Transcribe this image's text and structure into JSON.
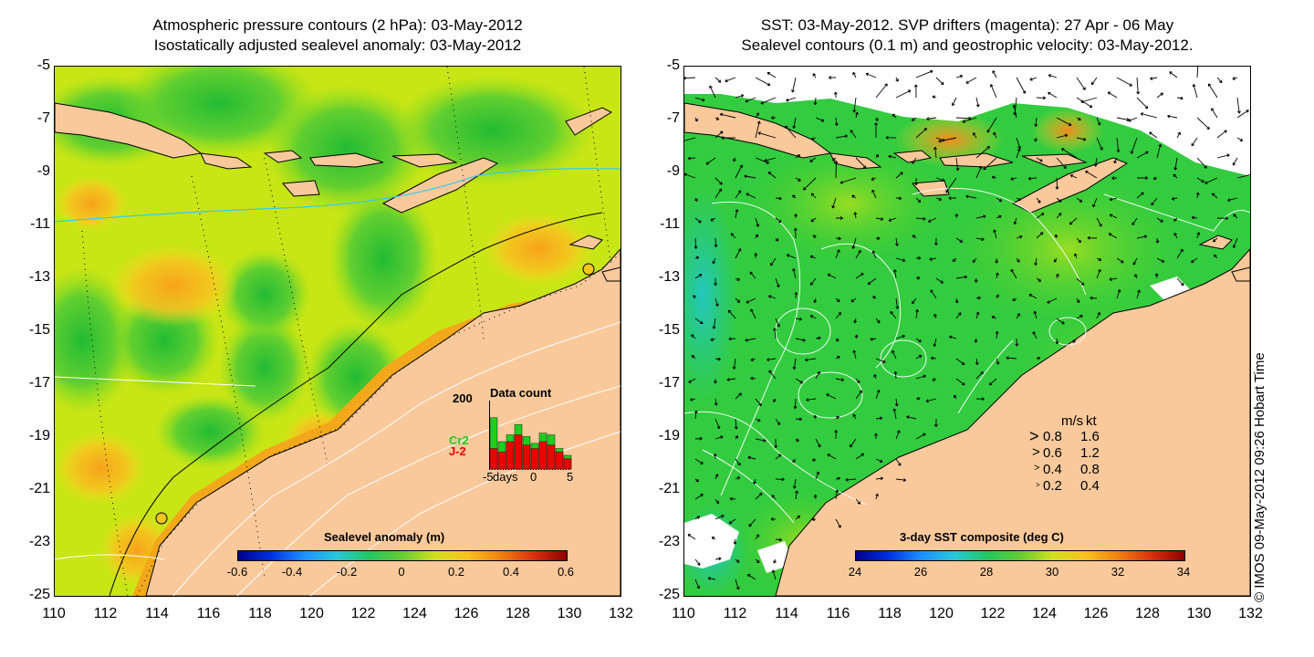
{
  "left_panel": {
    "title_line1": "Atmospheric pressure contours (2 hPa): 03-May-2012",
    "title_line2": "Isostatically adjusted sealevel anomaly: 03-May-2012",
    "colorbar": {
      "title": "Sealevel anomaly (m)",
      "ticks": [
        "-0.6",
        "-0.4",
        "-0.2",
        "0",
        "0.2",
        "0.4",
        "0.6"
      ]
    },
    "inset": {
      "title": "Data count",
      "ymax_label": "200",
      "series": [
        {
          "name": "Cr2",
          "color": "#22cc22"
        },
        {
          "name": "J-2",
          "color": "#ee0000"
        }
      ],
      "x_label": "days",
      "x_ticks": [
        "-5",
        "0",
        "5"
      ],
      "bins": {
        "x": [
          -5,
          -4,
          -3,
          -2,
          -1,
          0,
          1,
          2,
          3,
          4
        ],
        "j2": [
          60,
          50,
          80,
          100,
          70,
          60,
          80,
          70,
          50,
          30
        ],
        "cr2": [
          150,
          80,
          100,
          130,
          95,
          75,
          105,
          100,
          60,
          40
        ]
      }
    }
  },
  "right_panel": {
    "title_line1": "SST: 03-May-2012. SVP drifters (magenta): 27 Apr - 06 May",
    "title_line2": "Sealevel contours (0.1 m) and geostrophic velocity: 03-May-2012.",
    "colorbar": {
      "title": "3-day SST composite (deg C)",
      "ticks": [
        "24",
        "26",
        "28",
        "30",
        "32",
        "34"
      ]
    },
    "velocity_legend": {
      "header_ms": "m/s",
      "header_kt": "kt",
      "rows": [
        {
          "ms": "0.8",
          "kt": "1.6"
        },
        {
          "ms": "0.6",
          "kt": "1.2"
        },
        {
          "ms": "0.4",
          "kt": "0.8"
        },
        {
          "ms": "0.2",
          "kt": "0.4"
        }
      ]
    }
  },
  "axes": {
    "lat_labels": [
      "-5",
      "-7",
      "-9",
      "-11",
      "-13",
      "-15",
      "-17",
      "-19",
      "-21",
      "-23",
      "-25"
    ],
    "lon_labels": [
      "110",
      "112",
      "114",
      "116",
      "118",
      "120",
      "122",
      "124",
      "126",
      "128",
      "130",
      "132"
    ]
  },
  "credit": "© IMOS 09-May-2012 09:26 Hobart Time",
  "colors": {
    "land": "#f9c99b",
    "cloud": "#ffffff"
  }
}
